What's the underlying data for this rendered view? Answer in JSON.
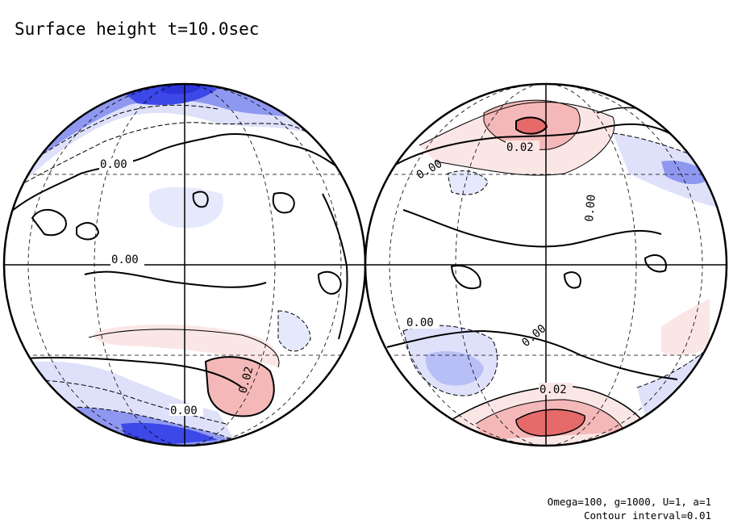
{
  "title": "Surface height t=10.0sec",
  "footer": {
    "params": "Omega=100, g=1000, U=1, a=1",
    "contour": "Contour interval=0.01"
  },
  "colors": {
    "low_strong": "#3d48e8",
    "low_mid": "#8f98f0",
    "low_light": "#dfe1fb",
    "high_light": "#fbe6e6",
    "high_mid": "#f4b8b8",
    "high_strong": "#e66a6a",
    "line": "#000000"
  },
  "contour_labels": {
    "left": [
      "0.00",
      "0.00",
      "0.02",
      "0.00"
    ],
    "right": [
      "0.00",
      "0.02",
      "0.00",
      "0.00",
      "0.00",
      "0.02"
    ]
  }
}
